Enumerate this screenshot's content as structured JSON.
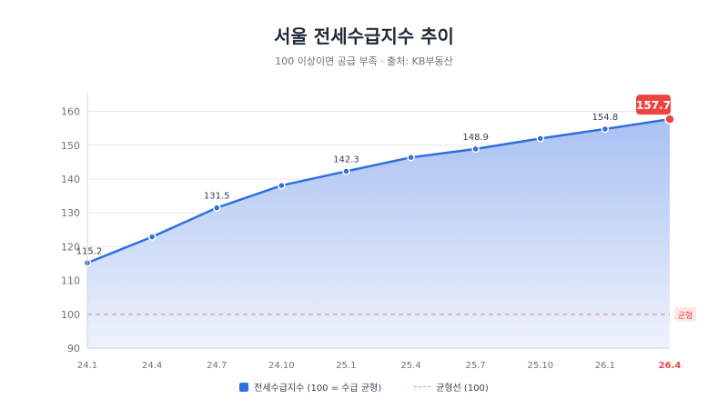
{
  "title": "서울 전세수급지수 추이",
  "subtitle": "100 이상이면 공급 부족 · 출처: KB부동산",
  "colors": {
    "line": "#2f6fe0",
    "area_top": "#a9c1f3",
    "area_bottom": "#eef2fb",
    "balance": "#e88a8a",
    "highlight": "#ef4444",
    "grid": "#e5e7eb",
    "axis_text": "#6b7280"
  },
  "chart_data": {
    "type": "line",
    "title": "서울 전세수급지수 추이",
    "subtitle": "100 이상이면 공급 부족 · 출처: KB부동산",
    "categories": [
      "24.1",
      "24.4",
      "24.7",
      "24.10",
      "25.1",
      "25.4",
      "25.7",
      "25.10",
      "26.1",
      "26.4"
    ],
    "series": [
      {
        "name": "전세수급지수 (100 = 수급 균형)",
        "values": [
          115.2,
          122.9,
          131.5,
          138.1,
          142.3,
          146.4,
          148.9,
          152.0,
          154.8,
          157.7
        ]
      }
    ],
    "labeled_points": [
      0,
      2,
      4,
      6,
      8
    ],
    "highlight": {
      "label": "157.7",
      "category": "26.4"
    },
    "reference_line": {
      "value": 100,
      "label": "균형",
      "legend": "균형선 (100)"
    },
    "y_ticks": [
      90,
      100,
      110,
      120,
      130,
      140,
      150,
      160
    ],
    "ylim": [
      90,
      165
    ],
    "xlabel": "",
    "ylabel": "",
    "grid": true,
    "legend_position": "bottom"
  }
}
